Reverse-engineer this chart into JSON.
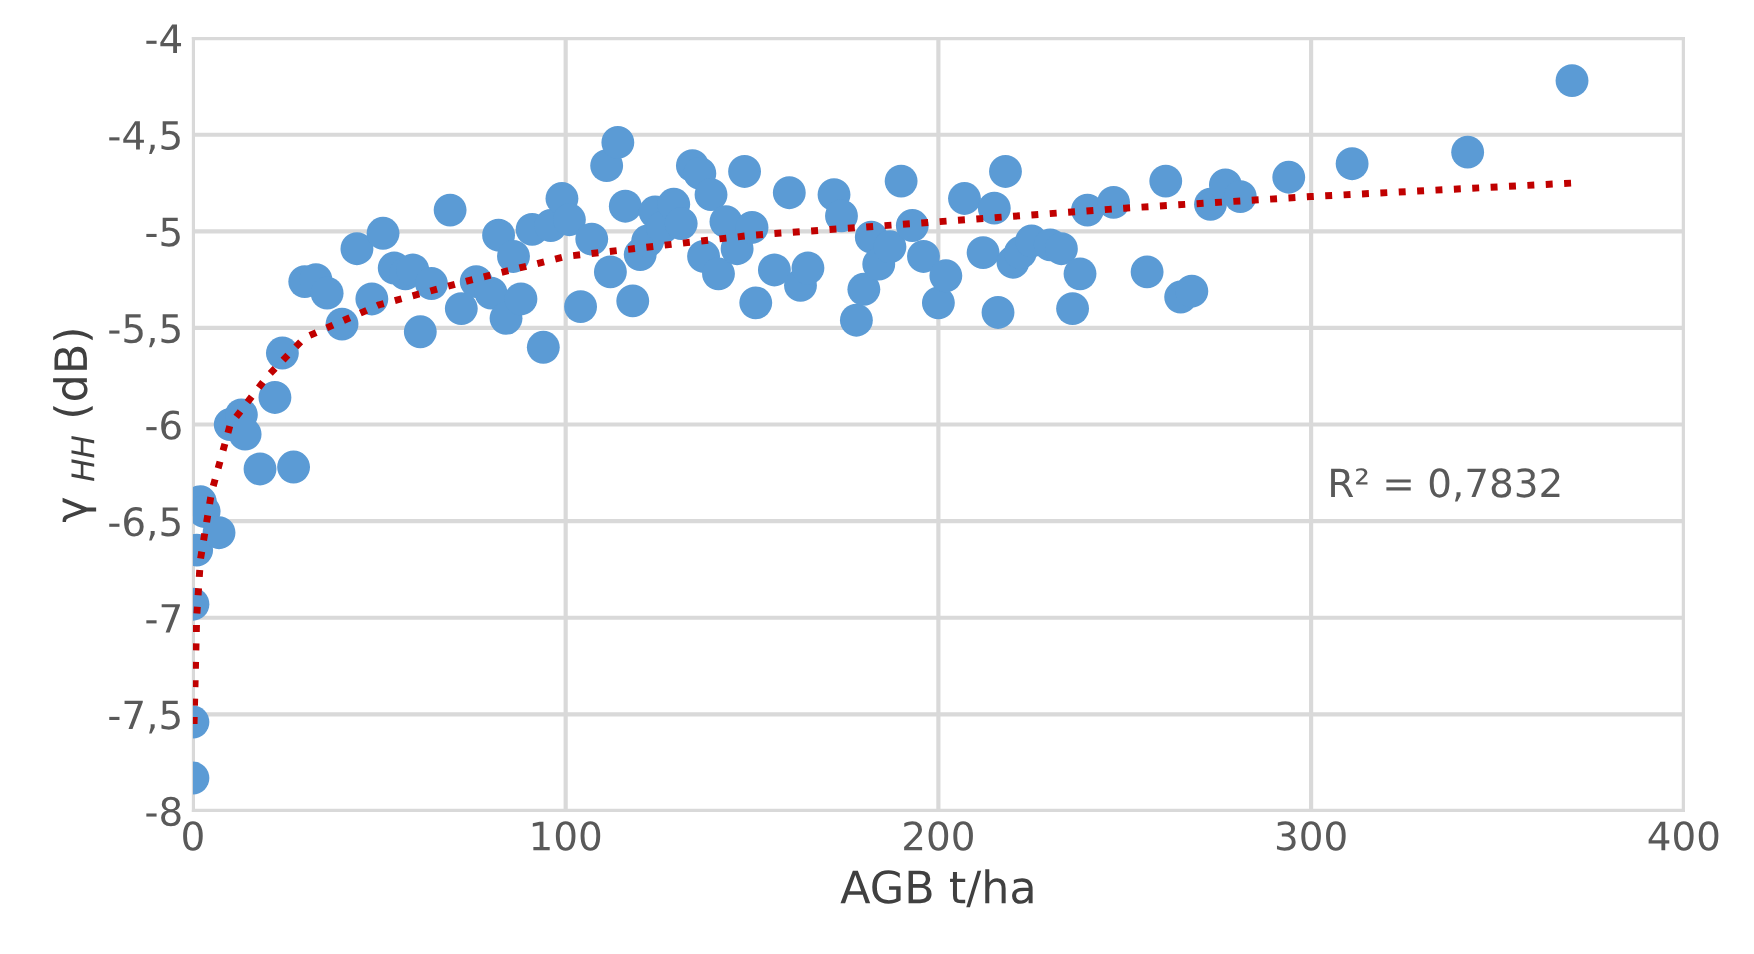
{
  "chart_data": {
    "type": "scatter",
    "xlabel": "AGB t/ha",
    "ylabel": "γ $_{HH}$ (dB)",
    "annotations": [
      "R² = 0,7832"
    ],
    "xlim": [
      0,
      400
    ],
    "xticks": [
      0,
      100,
      200,
      300,
      400
    ],
    "ylim": [
      -8,
      -4
    ],
    "yticks": [
      -8,
      {
        "value": -7.5,
        "label": "-7,5"
      },
      -7,
      {
        "value": -6.5,
        "label": "-6,5"
      },
      -6,
      {
        "value": -5.5,
        "label": "-5,5"
      },
      -5,
      {
        "value": -4.5,
        "label": "-4,5"
      },
      -4
    ],
    "grid": true,
    "series": [
      {
        "color": "#5b9bd5",
        "marker": "circle",
        "x": [
          0,
          0,
          0,
          1,
          2,
          3,
          7,
          10,
          13,
          14,
          18,
          22,
          24,
          27,
          30,
          33,
          36,
          40,
          44,
          48,
          51,
          54,
          57,
          59,
          61,
          64,
          69,
          72,
          76,
          80,
          82,
          84,
          86,
          88,
          91,
          94,
          96,
          99,
          101,
          104,
          107,
          111,
          112,
          114,
          116,
          118,
          120,
          122,
          124,
          126,
          129,
          131,
          134,
          136,
          137,
          139,
          141,
          143,
          146,
          148,
          150,
          151,
          156,
          160,
          163,
          165,
          172,
          174,
          178,
          180,
          182,
          184,
          187,
          190,
          193,
          196,
          200,
          202,
          207,
          212,
          215,
          216,
          218,
          220,
          222,
          225,
          230,
          233,
          236,
          238,
          240,
          247,
          256,
          261,
          265,
          268,
          273,
          277,
          281,
          294,
          311,
          342,
          370
        ],
        "values": [
          -7.83,
          -7.54,
          -6.93,
          -6.65,
          -6.4,
          -6.45,
          -6.56,
          -6.0,
          -5.95,
          -6.05,
          -6.23,
          -5.86,
          -5.63,
          -6.22,
          -5.26,
          -5.25,
          -5.32,
          -5.48,
          -5.09,
          -5.35,
          -5.01,
          -5.19,
          -5.22,
          -5.2,
          -5.52,
          -5.27,
          -4.89,
          -5.4,
          -5.26,
          -5.32,
          -5.02,
          -5.45,
          -5.13,
          -5.35,
          -4.99,
          -5.6,
          -4.97,
          -4.83,
          -4.94,
          -5.39,
          -5.04,
          -4.66,
          -5.21,
          -4.54,
          -4.87,
          -5.36,
          -5.12,
          -5.05,
          -4.9,
          -4.98,
          -4.86,
          -4.96,
          -4.66,
          -4.7,
          -5.13,
          -4.81,
          -5.22,
          -4.95,
          -5.09,
          -4.69,
          -4.98,
          -5.37,
          -5.2,
          -4.8,
          -5.28,
          -5.19,
          -4.81,
          -4.92,
          -5.46,
          -5.3,
          -5.03,
          -5.17,
          -5.08,
          -4.74,
          -4.97,
          -5.13,
          -5.37,
          -5.23,
          -4.83,
          -5.11,
          -4.88,
          -5.42,
          -4.69,
          -5.16,
          -5.11,
          -5.05,
          -5.07,
          -5.09,
          -5.4,
          -5.22,
          -4.89,
          -4.85,
          -5.21,
          -4.74,
          -5.34,
          -5.31,
          -4.86,
          -4.76,
          -4.82,
          -4.72,
          -4.65,
          -4.59,
          -4.22
        ]
      },
      {
        "type": "line",
        "color": "#c00000",
        "line_style": "dotted",
        "marker": "none",
        "x": [
          0.3,
          1,
          2,
          5,
          10,
          20,
          30,
          50,
          75,
          100,
          150,
          200,
          250,
          300,
          370
        ],
        "values": [
          -7.55,
          -7.0,
          -6.7,
          -6.35,
          -6.0,
          -5.75,
          -5.55,
          -5.38,
          -5.25,
          -5.13,
          -5.02,
          -4.95,
          -4.88,
          -4.82,
          -4.75
        ]
      }
    ]
  }
}
